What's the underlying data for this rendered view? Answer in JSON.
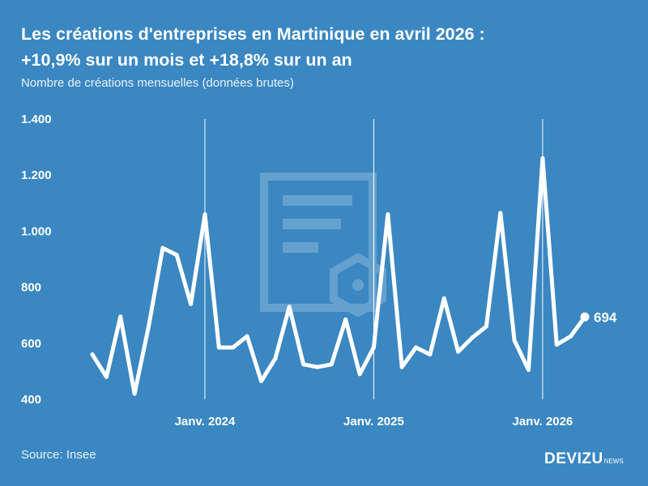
{
  "header": {
    "title_line1": "Les créations d'entreprises en Martinique en avril 2026 :",
    "title_line2": "+10,9% sur un mois et +18,8% sur un an",
    "subtitle": "Nombre de créations mensuelles (données brutes)"
  },
  "footer": {
    "source": "Source: Insee",
    "logo_main": "DEVIZU",
    "logo_sub": "NEWS"
  },
  "watermark_icon": "document-gear-icon",
  "colors": {
    "background": "#3a87c2",
    "line": "#ffffff"
  },
  "chart_data": {
    "type": "line",
    "title": "",
    "xlabel": "",
    "ylabel": "",
    "ylim": [
      400,
      1400
    ],
    "yticks": [
      400,
      600,
      800,
      1000,
      1200,
      1400
    ],
    "ytick_labels": [
      "400",
      "600",
      "800",
      "1.000",
      "1.200",
      "1.400"
    ],
    "x_range": [
      "2023-05",
      "2026-04"
    ],
    "xticks": [
      {
        "x": "2024-01",
        "label": "Janv. 2024"
      },
      {
        "x": "2025-01",
        "label": "Janv. 2025"
      },
      {
        "x": "2026-01",
        "label": "Janv. 2026"
      }
    ],
    "vertical_gridlines_at_xticks": true,
    "last_value_label": "694",
    "x": [
      "2023-05",
      "2023-06",
      "2023-07",
      "2023-08",
      "2023-09",
      "2023-10",
      "2023-11",
      "2023-12",
      "2024-01",
      "2024-02",
      "2024-03",
      "2024-04",
      "2024-05",
      "2024-06",
      "2024-07",
      "2024-08",
      "2024-09",
      "2024-10",
      "2024-11",
      "2024-12",
      "2025-01",
      "2025-02",
      "2025-03",
      "2025-04",
      "2025-05",
      "2025-06",
      "2025-07",
      "2025-08",
      "2025-09",
      "2025-10",
      "2025-11",
      "2025-12",
      "2026-01",
      "2026-02",
      "2026-03",
      "2026-04"
    ],
    "values": [
      560,
      480,
      695,
      420,
      660,
      940,
      915,
      740,
      1060,
      585,
      585,
      625,
      465,
      545,
      730,
      525,
      515,
      525,
      685,
      490,
      585,
      1060,
      515,
      585,
      560,
      760,
      570,
      620,
      660,
      1065,
      610,
      505,
      1260,
      595,
      625,
      694
    ]
  }
}
